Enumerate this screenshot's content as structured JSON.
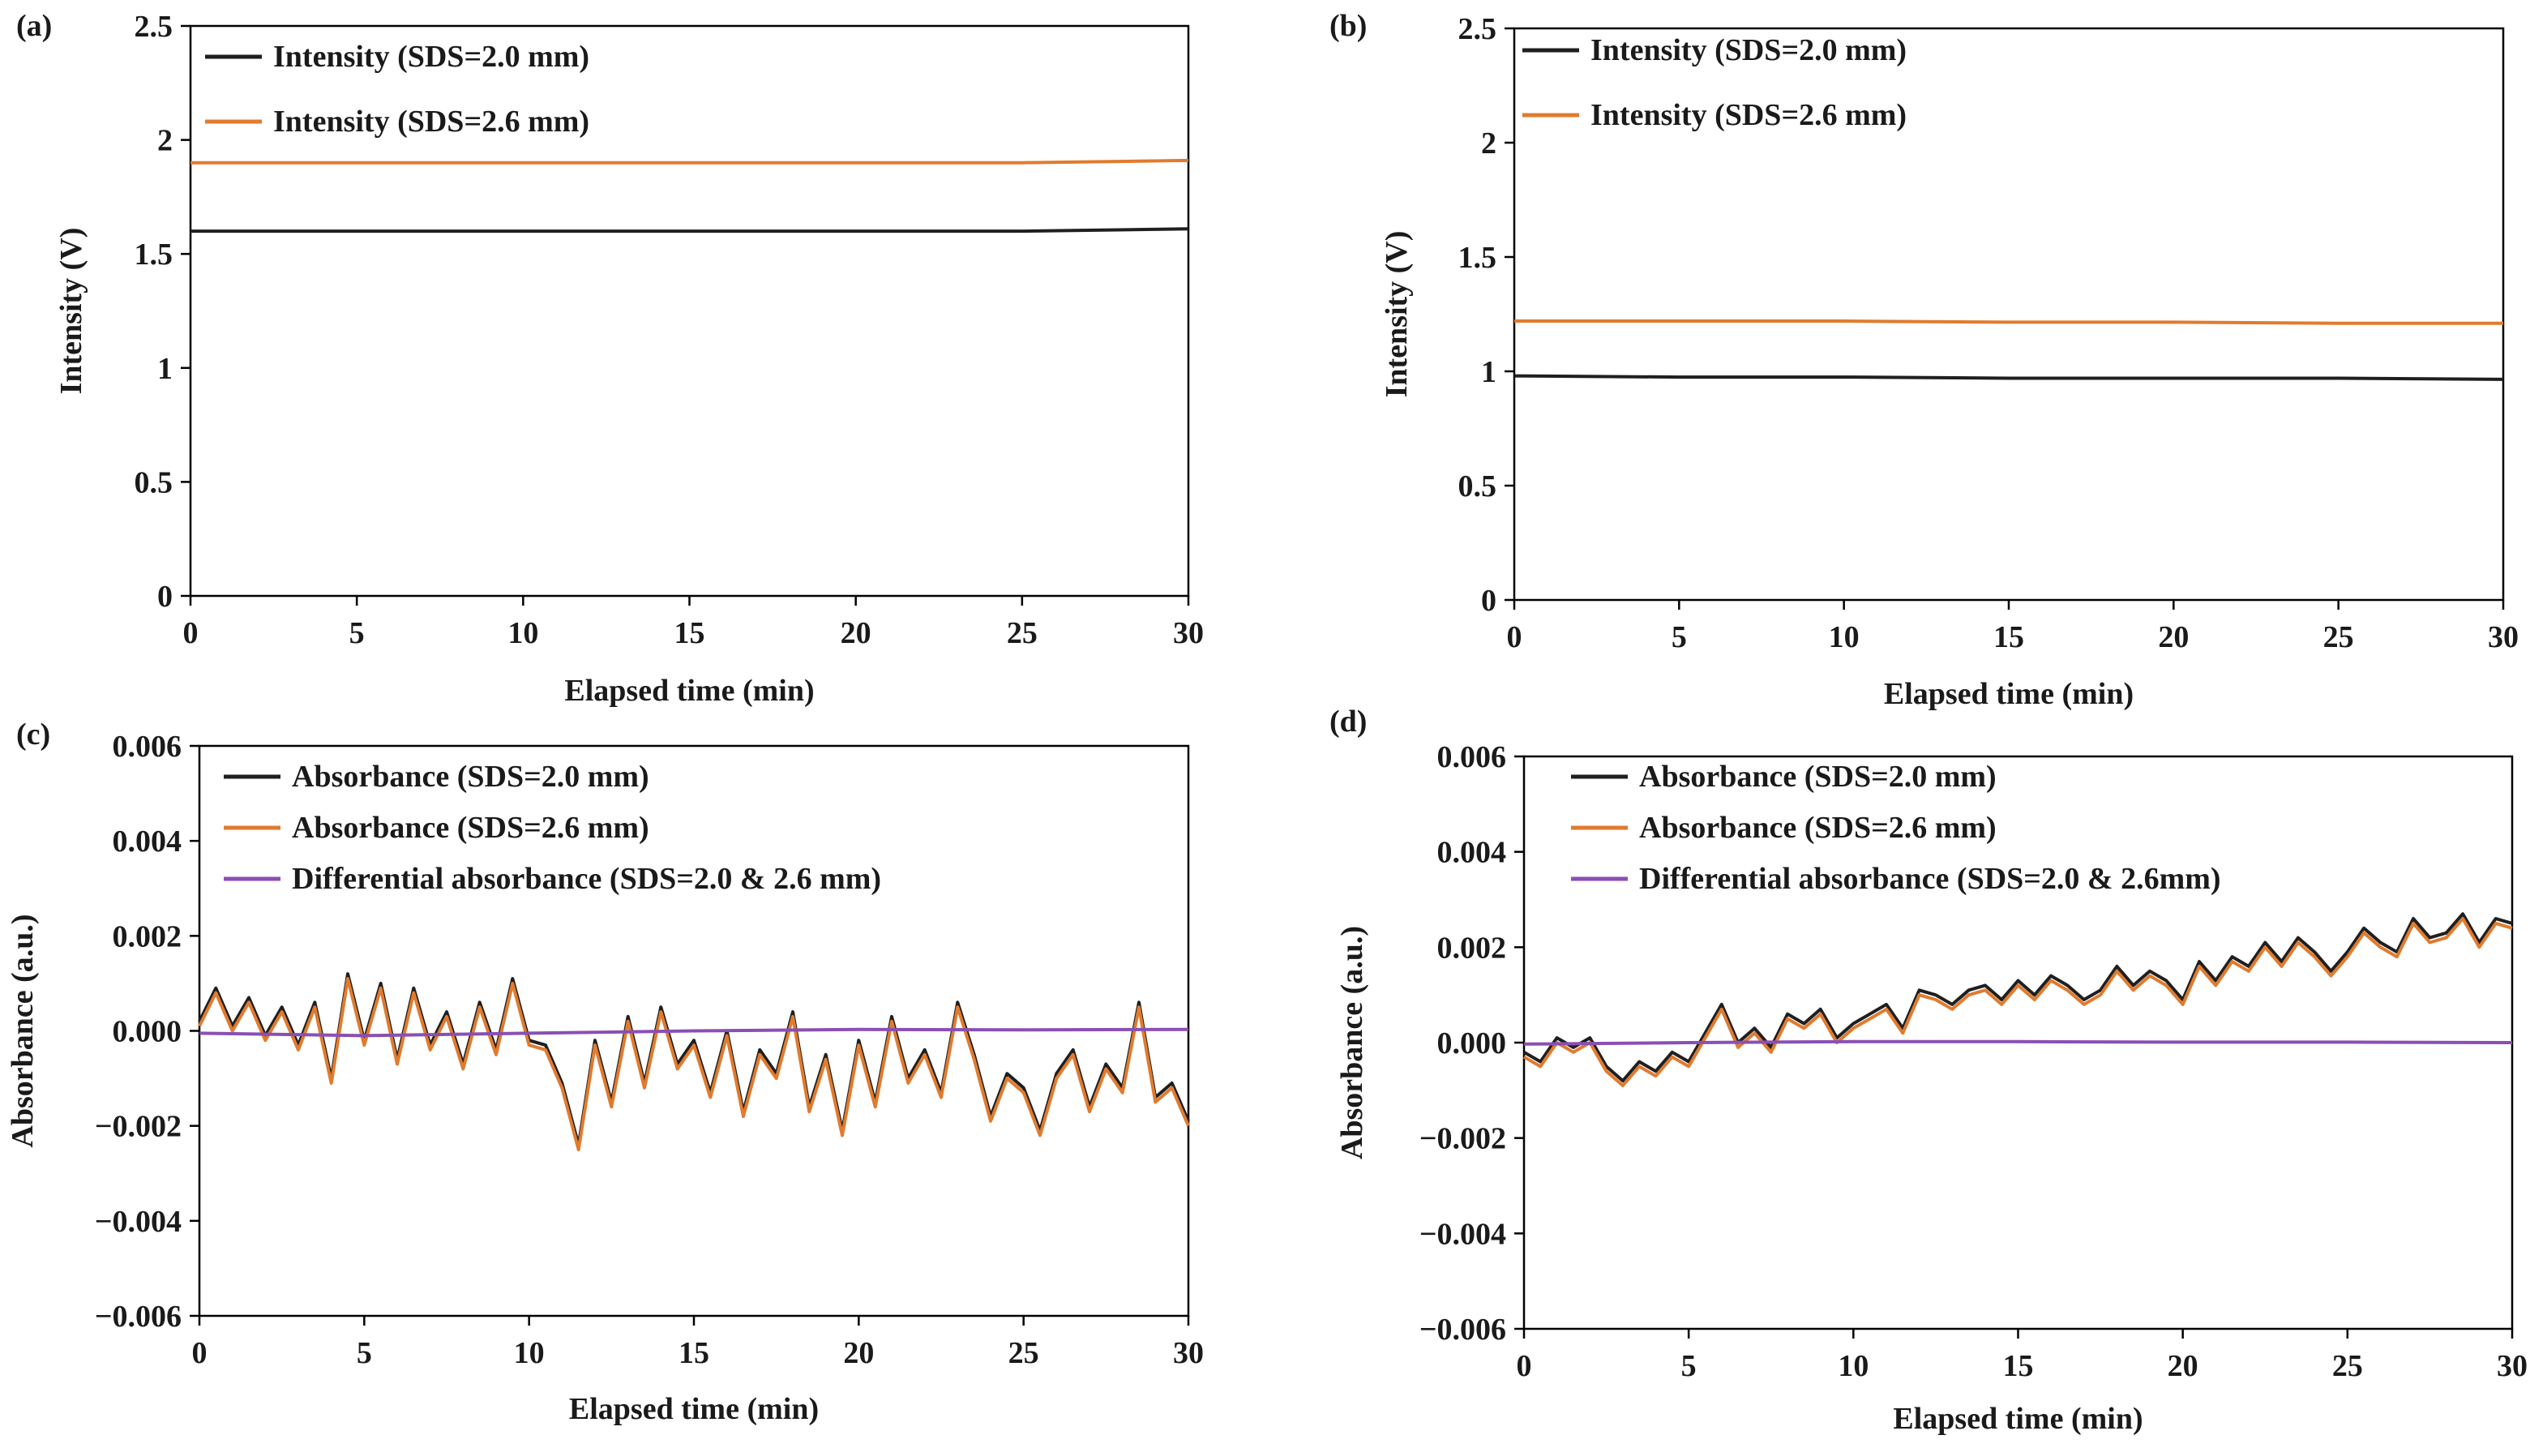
{
  "figure": {
    "panel_labels": [
      "(a)",
      "(b)",
      "(c)",
      "(d)"
    ]
  },
  "colors": {
    "black_series": "#1f1f1f",
    "orange_series": "#e07b2f",
    "purple_series": "#8a4fb3",
    "axis": "#000000"
  },
  "chart_data": [
    {
      "panel": "(a)",
      "type": "line",
      "xlabel": "Elapsed time (min)",
      "ylabel": "Intensity (V)",
      "xlim": [
        0,
        30
      ],
      "ylim": [
        0,
        2.5
      ],
      "xticks": [
        "0",
        "5",
        "10",
        "15",
        "20",
        "25",
        "30"
      ],
      "yticks": [
        "0",
        "0.5",
        "1",
        "1.5",
        "2",
        "2.5"
      ],
      "legend_position": "top-left",
      "series": [
        {
          "name": "Intensity (SDS=2.0 mm)",
          "color_key": "black_series",
          "x": [
            0,
            5,
            10,
            15,
            20,
            25,
            30
          ],
          "values": [
            1.6,
            1.6,
            1.6,
            1.6,
            1.6,
            1.6,
            1.61
          ]
        },
        {
          "name": "Intensity (SDS=2.6 mm)",
          "color_key": "orange_series",
          "x": [
            0,
            5,
            10,
            15,
            20,
            25,
            30
          ],
          "values": [
            1.9,
            1.9,
            1.9,
            1.9,
            1.9,
            1.9,
            1.91
          ]
        }
      ]
    },
    {
      "panel": "(b)",
      "type": "line",
      "xlabel": "Elapsed time (min)",
      "ylabel": "Intensity (V)",
      "xlim": [
        0,
        30
      ],
      "ylim": [
        0,
        2.5
      ],
      "xticks": [
        "0",
        "5",
        "10",
        "15",
        "20",
        "25",
        "30"
      ],
      "yticks": [
        "0",
        "0.5",
        "1",
        "1.5",
        "2",
        "2.5"
      ],
      "legend_position": "top-left",
      "series": [
        {
          "name": "Intensity (SDS=2.0 mm)",
          "color_key": "black_series",
          "x": [
            0,
            5,
            10,
            15,
            20,
            25,
            30
          ],
          "values": [
            0.98,
            0.975,
            0.975,
            0.97,
            0.97,
            0.97,
            0.965
          ]
        },
        {
          "name": "Intensity (SDS=2.6 mm)",
          "color_key": "orange_series",
          "x": [
            0,
            5,
            10,
            15,
            20,
            25,
            30
          ],
          "values": [
            1.22,
            1.22,
            1.22,
            1.215,
            1.215,
            1.21,
            1.21
          ]
        }
      ]
    },
    {
      "panel": "(c)",
      "type": "line",
      "xlabel": "Elapsed time (min)",
      "ylabel": "Absorbance (a.u.)",
      "xlim": [
        0,
        30
      ],
      "ylim": [
        -0.006,
        0.006
      ],
      "xticks": [
        "0",
        "5",
        "10",
        "15",
        "20",
        "25",
        "30"
      ],
      "yticks": [
        "−0.006",
        "−0.004",
        "−0.002",
        "0.000",
        "0.002",
        "0.004",
        "0.006"
      ],
      "legend_position": "top-left",
      "series": [
        {
          "name": "Absorbance (SDS=2.0 mm)",
          "color_key": "black_series",
          "x": [
            0,
            0.5,
            1,
            1.5,
            2,
            2.5,
            3,
            3.5,
            4,
            4.5,
            5,
            5.5,
            6,
            6.5,
            7,
            7.5,
            8,
            8.5,
            9,
            9.5,
            10,
            10.5,
            11,
            11.5,
            12,
            12.5,
            13,
            13.5,
            14,
            14.5,
            15,
            15.5,
            16,
            16.5,
            17,
            17.5,
            18,
            18.5,
            19,
            19.5,
            20,
            20.5,
            21,
            21.5,
            22,
            22.5,
            23,
            23.5,
            24,
            24.5,
            25,
            25.5,
            26,
            26.5,
            27,
            27.5,
            28,
            28.5,
            29,
            29.5,
            30
          ],
          "values": [
            0.0002,
            0.0009,
            0.0001,
            0.0007,
            -0.0001,
            0.0005,
            -0.0003,
            0.0006,
            -0.001,
            0.0012,
            -0.0002,
            0.001,
            -0.0006,
            0.0009,
            -0.0003,
            0.0004,
            -0.0007,
            0.0006,
            -0.0004,
            0.0011,
            -0.0002,
            -0.0003,
            -0.0011,
            -0.0024,
            -0.0002,
            -0.0015,
            0.0003,
            -0.0011,
            0.0005,
            -0.0007,
            -0.0002,
            -0.0013,
            0.0,
            -0.0017,
            -0.0004,
            -0.0009,
            0.0004,
            -0.0016,
            -0.0005,
            -0.0021,
            -0.0002,
            -0.0015,
            0.0003,
            -0.001,
            -0.0004,
            -0.0013,
            0.0006,
            -0.0005,
            -0.0018,
            -0.0009,
            -0.0012,
            -0.0021,
            -0.0009,
            -0.0004,
            -0.0016,
            -0.0007,
            -0.0012,
            0.0006,
            -0.0014,
            -0.0011,
            -0.0019
          ]
        },
        {
          "name": "Absorbance (SDS=2.6 mm)",
          "color_key": "orange_series",
          "x": [
            0,
            0.5,
            1,
            1.5,
            2,
            2.5,
            3,
            3.5,
            4,
            4.5,
            5,
            5.5,
            6,
            6.5,
            7,
            7.5,
            8,
            8.5,
            9,
            9.5,
            10,
            10.5,
            11,
            11.5,
            12,
            12.5,
            13,
            13.5,
            14,
            14.5,
            15,
            15.5,
            16,
            16.5,
            17,
            17.5,
            18,
            18.5,
            19,
            19.5,
            20,
            20.5,
            21,
            21.5,
            22,
            22.5,
            23,
            23.5,
            24,
            24.5,
            25,
            25.5,
            26,
            26.5,
            27,
            27.5,
            28,
            28.5,
            29,
            29.5,
            30
          ],
          "values": [
            0.0001,
            0.0008,
            0.0,
            0.0006,
            -0.0002,
            0.0004,
            -0.0004,
            0.0005,
            -0.0011,
            0.0011,
            -0.0003,
            0.0009,
            -0.0007,
            0.0008,
            -0.0004,
            0.0003,
            -0.0008,
            0.0005,
            -0.0005,
            0.001,
            -0.0003,
            -0.0004,
            -0.0012,
            -0.0025,
            -0.0003,
            -0.0016,
            0.0002,
            -0.0012,
            0.0004,
            -0.0008,
            -0.0003,
            -0.0014,
            -0.0001,
            -0.0018,
            -0.0005,
            -0.001,
            0.0003,
            -0.0017,
            -0.0006,
            -0.0022,
            -0.0003,
            -0.0016,
            0.0002,
            -0.0011,
            -0.0005,
            -0.0014,
            0.0005,
            -0.0006,
            -0.0019,
            -0.001,
            -0.0013,
            -0.0022,
            -0.001,
            -0.0005,
            -0.0017,
            -0.0008,
            -0.0013,
            0.0005,
            -0.0015,
            -0.0012,
            -0.002
          ]
        },
        {
          "name": "Differential absorbance (SDS=2.0 & 2.6 mm)",
          "color_key": "purple_series",
          "x": [
            0,
            5,
            10,
            15,
            20,
            25,
            30
          ],
          "values": [
            -5e-05,
            -0.0001,
            -5e-05,
            0.0,
            3e-05,
            2e-05,
            3e-05
          ]
        }
      ]
    },
    {
      "panel": "(d)",
      "type": "line",
      "xlabel": "Elapsed time (min)",
      "ylabel": "Absorbance (a.u.)",
      "xlim": [
        0,
        30
      ],
      "ylim": [
        -0.006,
        0.006
      ],
      "xticks": [
        "0",
        "5",
        "10",
        "15",
        "20",
        "25",
        "30"
      ],
      "yticks": [
        "−0.006",
        "−0.004",
        "−0.002",
        "0.000",
        "0.002",
        "0.004",
        "0.006"
      ],
      "legend_position": "top-left",
      "series": [
        {
          "name": "Absorbance (SDS=2.0 mm)",
          "color_key": "black_series",
          "x": [
            0,
            0.5,
            1,
            1.5,
            2,
            2.5,
            3,
            3.5,
            4,
            4.5,
            5,
            5.5,
            6,
            6.5,
            7,
            7.5,
            8,
            8.5,
            9,
            9.5,
            10,
            10.5,
            11,
            11.5,
            12,
            12.5,
            13,
            13.5,
            14,
            14.5,
            15,
            15.5,
            16,
            16.5,
            17,
            17.5,
            18,
            18.5,
            19,
            19.5,
            20,
            20.5,
            21,
            21.5,
            22,
            22.5,
            23,
            23.5,
            24,
            24.5,
            25,
            25.5,
            26,
            26.5,
            27,
            27.5,
            28,
            28.5,
            29,
            29.5,
            30
          ],
          "values": [
            -0.0002,
            -0.0004,
            0.0001,
            -0.0001,
            0.0001,
            -0.0005,
            -0.0008,
            -0.0004,
            -0.0006,
            -0.0002,
            -0.0004,
            0.0002,
            0.0008,
            0.0,
            0.0003,
            -0.0001,
            0.0006,
            0.0004,
            0.0007,
            0.0001,
            0.0004,
            0.0006,
            0.0008,
            0.0003,
            0.0011,
            0.001,
            0.0008,
            0.0011,
            0.0012,
            0.0009,
            0.0013,
            0.001,
            0.0014,
            0.0012,
            0.0009,
            0.0011,
            0.0016,
            0.0012,
            0.0015,
            0.0013,
            0.0009,
            0.0017,
            0.0013,
            0.0018,
            0.0016,
            0.0021,
            0.0017,
            0.0022,
            0.0019,
            0.0015,
            0.0019,
            0.0024,
            0.0021,
            0.0019,
            0.0026,
            0.0022,
            0.0023,
            0.0027,
            0.0021,
            0.0026,
            0.0025
          ]
        },
        {
          "name": "Absorbance (SDS=2.6 mm)",
          "color_key": "orange_series",
          "x": [
            0,
            0.5,
            1,
            1.5,
            2,
            2.5,
            3,
            3.5,
            4,
            4.5,
            5,
            5.5,
            6,
            6.5,
            7,
            7.5,
            8,
            8.5,
            9,
            9.5,
            10,
            10.5,
            11,
            11.5,
            12,
            12.5,
            13,
            13.5,
            14,
            14.5,
            15,
            15.5,
            16,
            16.5,
            17,
            17.5,
            18,
            18.5,
            19,
            19.5,
            20,
            20.5,
            21,
            21.5,
            22,
            22.5,
            23,
            23.5,
            24,
            24.5,
            25,
            25.5,
            26,
            26.5,
            27,
            27.5,
            28,
            28.5,
            29,
            29.5,
            30
          ],
          "values": [
            -0.0003,
            -0.0005,
            0.0,
            -0.0002,
            0.0,
            -0.0006,
            -0.0009,
            -0.0005,
            -0.0007,
            -0.0003,
            -0.0005,
            0.0001,
            0.0007,
            -0.0001,
            0.0002,
            -0.0002,
            0.0005,
            0.0003,
            0.0006,
            0.0,
            0.0003,
            0.0005,
            0.0007,
            0.0002,
            0.001,
            0.0009,
            0.0007,
            0.001,
            0.0011,
            0.0008,
            0.0012,
            0.0009,
            0.0013,
            0.0011,
            0.0008,
            0.001,
            0.0015,
            0.0011,
            0.0014,
            0.0012,
            0.0008,
            0.0016,
            0.0012,
            0.0017,
            0.0015,
            0.002,
            0.0016,
            0.0021,
            0.0018,
            0.0014,
            0.0018,
            0.0023,
            0.002,
            0.0018,
            0.0025,
            0.0021,
            0.0022,
            0.0026,
            0.002,
            0.0025,
            0.0024
          ]
        },
        {
          "name": "Differential absorbance (SDS=2.0 & 2.6mm)",
          "color_key": "purple_series",
          "x": [
            0,
            5,
            10,
            15,
            20,
            25,
            30
          ],
          "values": [
            -3e-05,
            0.0,
            2e-05,
            2e-05,
            1e-05,
            1e-05,
            0.0
          ]
        }
      ]
    }
  ]
}
